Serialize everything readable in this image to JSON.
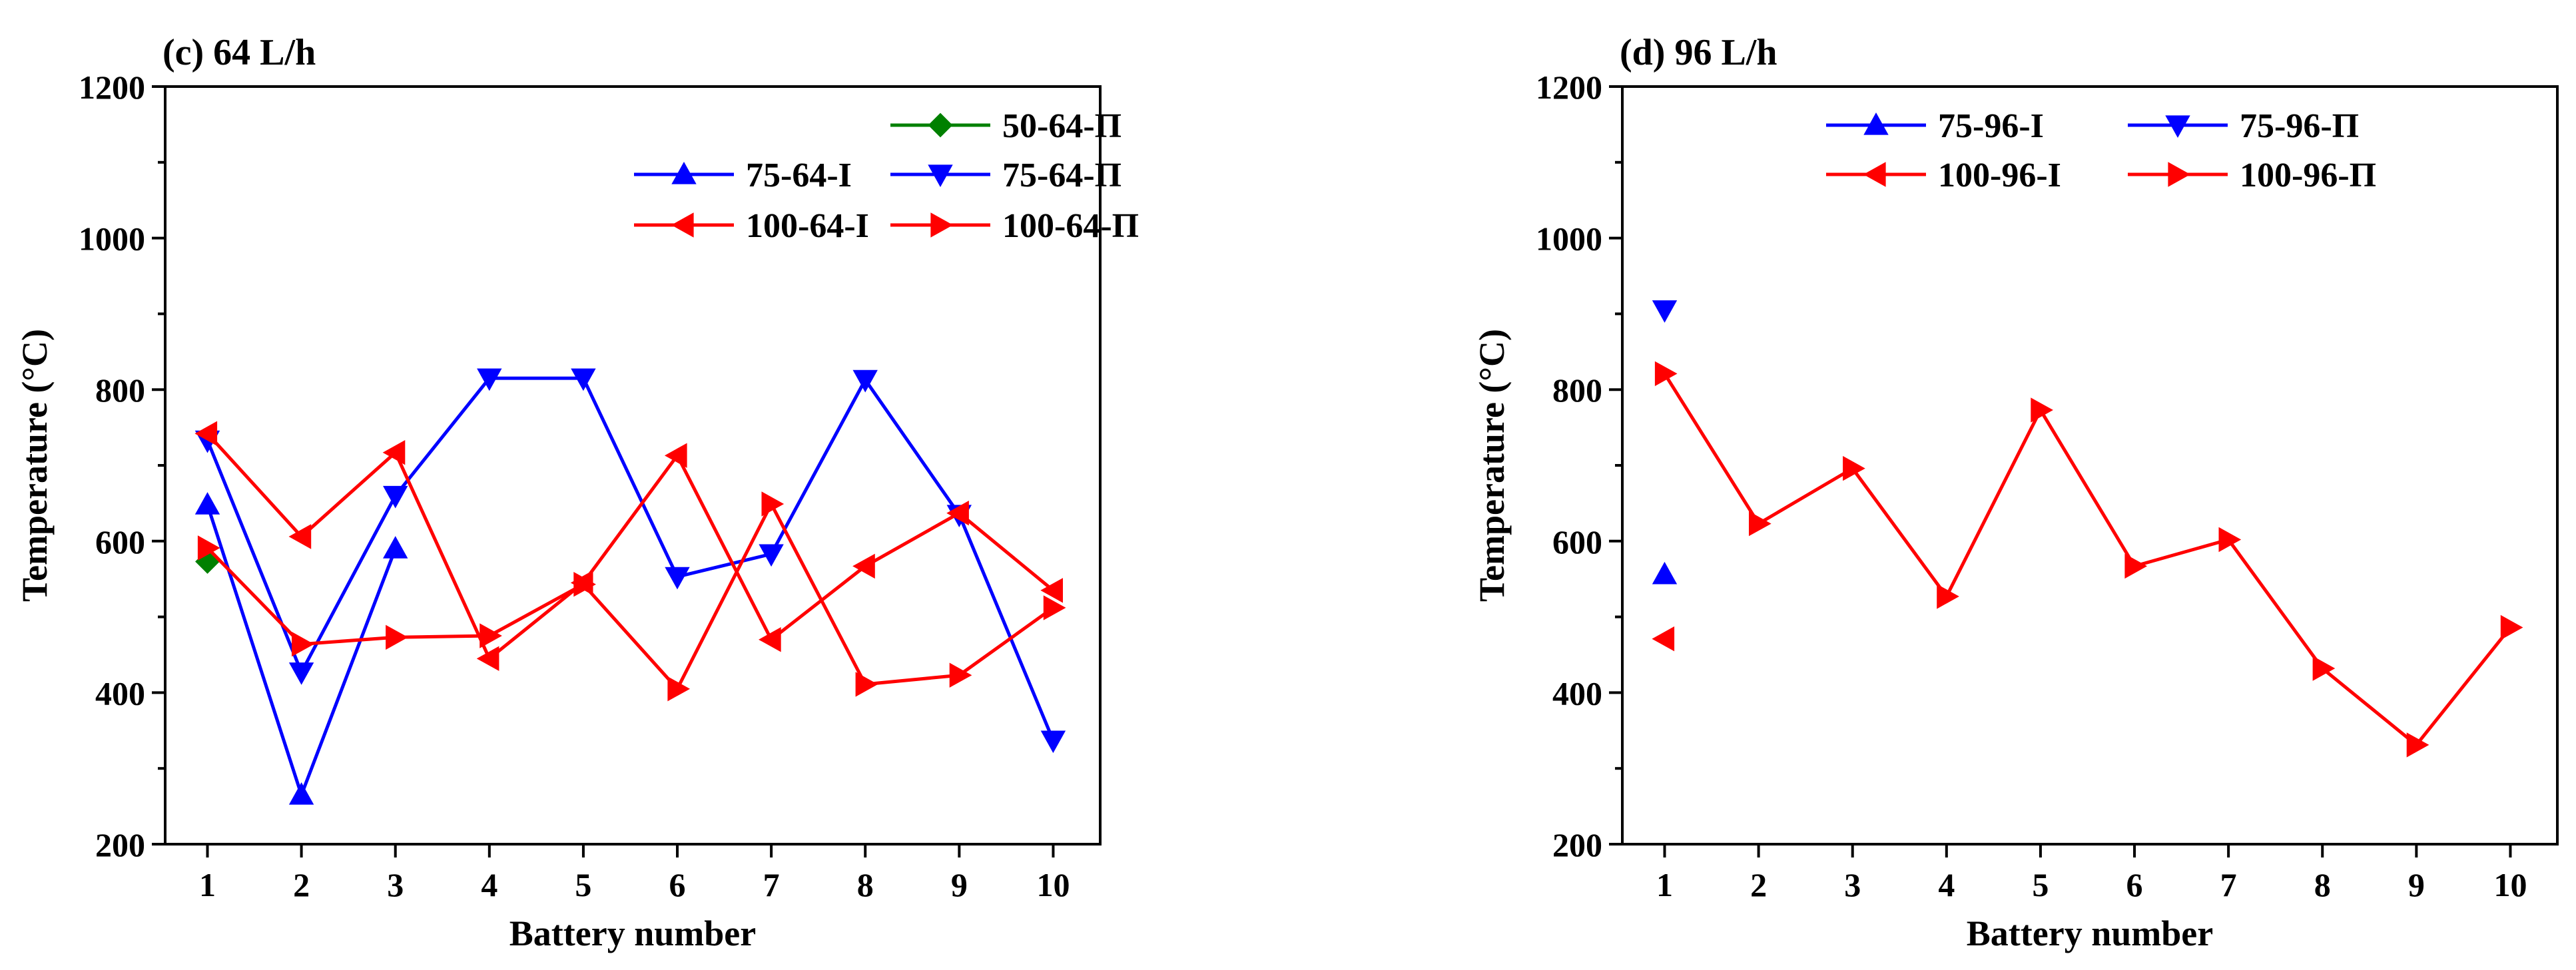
{
  "chart_data": [
    {
      "type": "line",
      "title": "(c) 64 L/h",
      "xlabel": "Battery number",
      "ylabel": "Temperature (°C)",
      "xlim": [
        0.55,
        10.5
      ],
      "ylim": [
        200,
        1200
      ],
      "xticks": [
        1,
        2,
        3,
        4,
        5,
        6,
        7,
        8,
        9,
        10
      ],
      "yticks": [
        200,
        400,
        600,
        800,
        1000,
        1200
      ],
      "legend_placement": "top-right",
      "legend_order": [
        "50-64-Π",
        "75-64-I",
        "75-64-Π",
        "100-64-I",
        "100-64-Π"
      ],
      "series": [
        {
          "name": "50-64-Π",
          "color": "#008000",
          "marker": "diamond",
          "x": [
            1
          ],
          "y": [
            573
          ]
        },
        {
          "name": "75-64-I",
          "color": "#0000ff",
          "marker": "triangle-up",
          "x": [
            1,
            2,
            3
          ],
          "y": [
            648,
            265,
            590
          ]
        },
        {
          "name": "75-64-Π",
          "color": "#0000ff",
          "marker": "triangle-down",
          "x": [
            1,
            2,
            3,
            4,
            5,
            6,
            7,
            8,
            9,
            10
          ],
          "y": [
            733,
            427,
            660,
            815,
            815,
            553,
            583,
            813,
            635,
            337
          ]
        },
        {
          "name": "100-64-I",
          "color": "#ff0000",
          "marker": "triangle-left",
          "x": [
            1,
            2,
            3,
            4,
            5,
            6,
            7,
            8,
            9,
            10
          ],
          "y": [
            742,
            606,
            717,
            445,
            545,
            713,
            470,
            567,
            637,
            535
          ]
        },
        {
          "name": "100-64-Π",
          "color": "#ff0000",
          "marker": "triangle-right",
          "x": [
            1,
            2,
            3,
            4,
            5,
            6,
            7,
            8,
            9,
            10
          ],
          "y": [
            591,
            464,
            473,
            475,
            543,
            405,
            649,
            411,
            423,
            512
          ]
        }
      ]
    },
    {
      "type": "line",
      "title": "(d) 96 L/h",
      "xlabel": "Battery number",
      "ylabel": "Temperature (°C)",
      "xlim": [
        0.55,
        10.5
      ],
      "ylim": [
        200,
        1200
      ],
      "xticks": [
        1,
        2,
        3,
        4,
        5,
        6,
        7,
        8,
        9,
        10
      ],
      "yticks": [
        200,
        400,
        600,
        800,
        1000,
        1200
      ],
      "legend_placement": "top-right",
      "legend_order": [
        "75-96-I",
        "75-96-Π",
        "100-96-I",
        "100-96-Π"
      ],
      "series": [
        {
          "name": "75-96-I",
          "color": "#0000ff",
          "marker": "triangle-up",
          "x": [
            1
          ],
          "y": [
            556
          ]
        },
        {
          "name": "75-96-Π",
          "color": "#0000ff",
          "marker": "triangle-down",
          "x": [
            1
          ],
          "y": [
            905
          ]
        },
        {
          "name": "100-96-I",
          "color": "#ff0000",
          "marker": "triangle-left",
          "x": [
            1
          ],
          "y": [
            471
          ]
        },
        {
          "name": "100-96-Π",
          "color": "#ff0000",
          "marker": "triangle-right",
          "x": [
            1,
            2,
            3,
            4,
            5,
            6,
            7,
            8,
            9,
            10
          ],
          "y": [
            821,
            623,
            696,
            527,
            773,
            567,
            602,
            432,
            331,
            486
          ]
        }
      ]
    }
  ]
}
